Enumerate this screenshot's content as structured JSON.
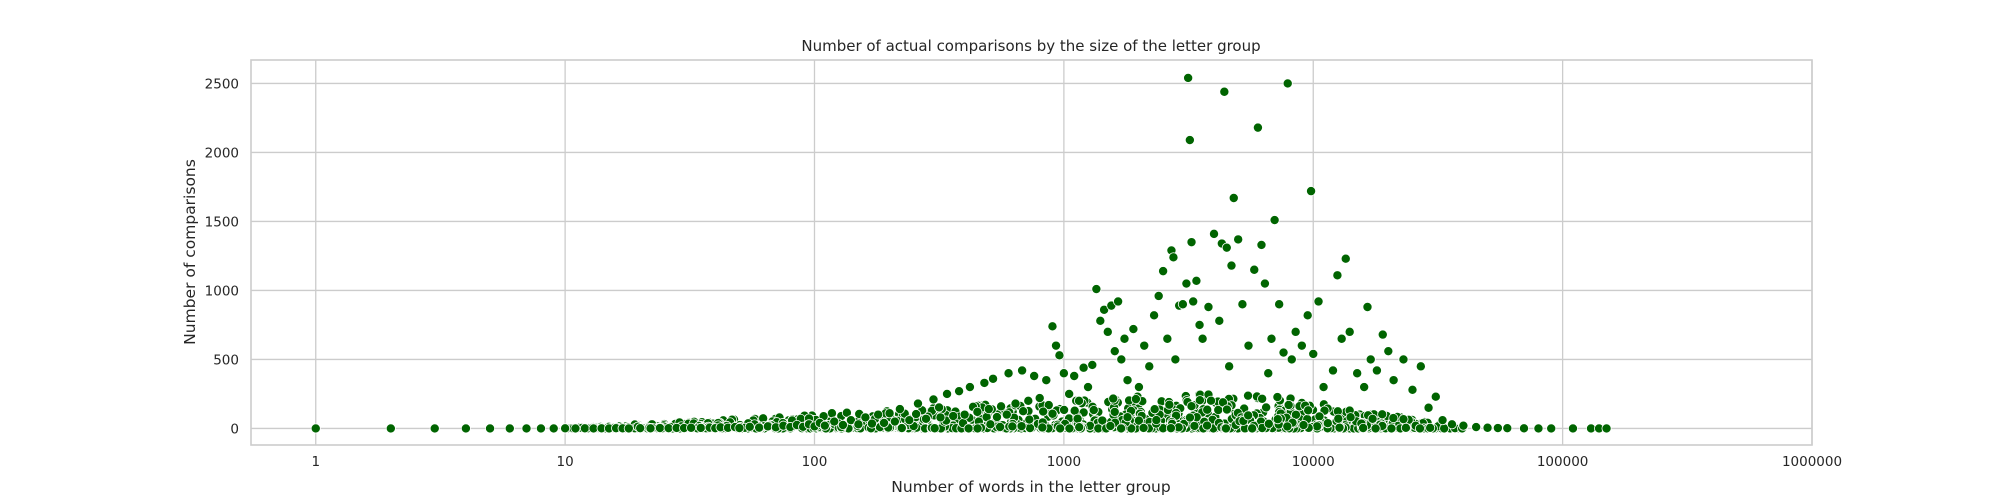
{
  "chart_data": {
    "type": "scatter",
    "title": "Number of actual comparisons by the size of the letter group",
    "xlabel": "Number of words in the letter group",
    "ylabel": "Number of comparisons",
    "x_scale": "log",
    "xlim": [
      0.55,
      1000000
    ],
    "ylim": [
      -120,
      2670
    ],
    "x_ticks": [
      1,
      10,
      100,
      1000,
      10000,
      100000,
      1000000
    ],
    "x_tick_labels": [
      "1",
      "10",
      "100",
      "1000",
      "10000",
      "100000",
      "1000000"
    ],
    "y_ticks": [
      0,
      500,
      1000,
      1500,
      2000,
      2500
    ],
    "y_tick_labels": [
      "0",
      "500",
      "1000",
      "1500",
      "2000",
      "2500"
    ],
    "grid": true,
    "legend": "none",
    "point_color": "#006400",
    "series": [
      {
        "values": [
          [
            1,
            0
          ],
          [
            2,
            0
          ],
          [
            3,
            0
          ],
          [
            4,
            0
          ],
          [
            5,
            0
          ],
          [
            6,
            0
          ],
          [
            7,
            0
          ],
          [
            8,
            0
          ],
          [
            9,
            0
          ],
          [
            10,
            1
          ],
          [
            11,
            0
          ],
          [
            12,
            1
          ],
          [
            13,
            0
          ],
          [
            14,
            1
          ],
          [
            15,
            0
          ],
          [
            16,
            2
          ],
          [
            17,
            1
          ],
          [
            18,
            0
          ],
          [
            20,
            2
          ],
          [
            22,
            1
          ],
          [
            24,
            3
          ],
          [
            26,
            2
          ],
          [
            28,
            4
          ],
          [
            30,
            3
          ],
          [
            32,
            5
          ],
          [
            35,
            4
          ],
          [
            38,
            6
          ],
          [
            40,
            2
          ],
          [
            42,
            8
          ],
          [
            45,
            5
          ],
          [
            48,
            10
          ],
          [
            50,
            3
          ],
          [
            55,
            12
          ],
          [
            60,
            6
          ],
          [
            65,
            15
          ],
          [
            70,
            8
          ],
          [
            75,
            20
          ],
          [
            80,
            10
          ],
          [
            85,
            25
          ],
          [
            90,
            12
          ],
          [
            95,
            30
          ],
          [
            100,
            15
          ],
          [
            105,
            40
          ],
          [
            110,
            20
          ],
          [
            120,
            50
          ],
          [
            130,
            25
          ],
          [
            140,
            60
          ],
          [
            150,
            30
          ],
          [
            160,
            80
          ],
          [
            170,
            35
          ],
          [
            180,
            100
          ],
          [
            190,
            40
          ],
          [
            200,
            110
          ],
          [
            210,
            50
          ],
          [
            220,
            140
          ],
          [
            240,
            60
          ],
          [
            260,
            180
          ],
          [
            280,
            70
          ],
          [
            300,
            210
          ],
          [
            320,
            80
          ],
          [
            340,
            250
          ],
          [
            360,
            90
          ],
          [
            380,
            270
          ],
          [
            400,
            100
          ],
          [
            420,
            300
          ],
          [
            450,
            120
          ],
          [
            480,
            330
          ],
          [
            500,
            140
          ],
          [
            520,
            360
          ],
          [
            560,
            160
          ],
          [
            600,
            400
          ],
          [
            640,
            180
          ],
          [
            680,
            420
          ],
          [
            720,
            200
          ],
          [
            760,
            380
          ],
          [
            800,
            220
          ],
          [
            850,
            350
          ],
          [
            900,
            740
          ],
          [
            930,
            600
          ],
          [
            960,
            530
          ],
          [
            1000,
            400
          ],
          [
            1050,
            250
          ],
          [
            1100,
            380
          ],
          [
            1150,
            200
          ],
          [
            1200,
            440
          ],
          [
            1250,
            300
          ],
          [
            1300,
            460
          ],
          [
            1350,
            1010
          ],
          [
            1400,
            780
          ],
          [
            1450,
            860
          ],
          [
            1500,
            700
          ],
          [
            1550,
            890
          ],
          [
            1600,
            560
          ],
          [
            1650,
            920
          ],
          [
            1700,
            500
          ],
          [
            1750,
            650
          ],
          [
            1800,
            350
          ],
          [
            1900,
            720
          ],
          [
            2000,
            300
          ],
          [
            2100,
            600
          ],
          [
            2200,
            450
          ],
          [
            2300,
            820
          ],
          [
            2400,
            960
          ],
          [
            2500,
            1140
          ],
          [
            2600,
            650
          ],
          [
            2700,
            1290
          ],
          [
            2750,
            1240
          ],
          [
            2800,
            500
          ],
          [
            2900,
            890
          ],
          [
            3000,
            900
          ],
          [
            3100,
            1050
          ],
          [
            3150,
            2540
          ],
          [
            3200,
            2090
          ],
          [
            3250,
            1350
          ],
          [
            3300,
            920
          ],
          [
            3400,
            1070
          ],
          [
            3500,
            750
          ],
          [
            3600,
            650
          ],
          [
            3800,
            880
          ],
          [
            4000,
            1410
          ],
          [
            4200,
            780
          ],
          [
            4300,
            1340
          ],
          [
            4400,
            2440
          ],
          [
            4500,
            1310
          ],
          [
            4600,
            450
          ],
          [
            4700,
            1180
          ],
          [
            4800,
            1670
          ],
          [
            5000,
            1370
          ],
          [
            5200,
            900
          ],
          [
            5500,
            600
          ],
          [
            5800,
            1150
          ],
          [
            6000,
            2180
          ],
          [
            6200,
            1330
          ],
          [
            6400,
            1050
          ],
          [
            6600,
            400
          ],
          [
            6800,
            650
          ],
          [
            7000,
            1510
          ],
          [
            7300,
            900
          ],
          [
            7600,
            550
          ],
          [
            7900,
            2500
          ],
          [
            8200,
            500
          ],
          [
            8500,
            700
          ],
          [
            9000,
            600
          ],
          [
            9500,
            820
          ],
          [
            9800,
            1720
          ],
          [
            10000,
            540
          ],
          [
            10500,
            920
          ],
          [
            11000,
            300
          ],
          [
            12000,
            420
          ],
          [
            12500,
            1110
          ],
          [
            13000,
            650
          ],
          [
            13500,
            1230
          ],
          [
            14000,
            700
          ],
          [
            15000,
            400
          ],
          [
            16000,
            300
          ],
          [
            16500,
            880
          ],
          [
            17000,
            500
          ],
          [
            18000,
            420
          ],
          [
            19000,
            680
          ],
          [
            20000,
            560
          ],
          [
            21000,
            350
          ],
          [
            23000,
            500
          ],
          [
            25000,
            280
          ],
          [
            27000,
            450
          ],
          [
            29000,
            150
          ],
          [
            31000,
            230
          ],
          [
            33000,
            60
          ],
          [
            36000,
            30
          ],
          [
            40000,
            20
          ],
          [
            45000,
            10
          ],
          [
            50000,
            5
          ],
          [
            55000,
            3
          ],
          [
            60000,
            2
          ],
          [
            70000,
            1
          ],
          [
            80000,
            0
          ],
          [
            90000,
            0
          ],
          [
            110000,
            0
          ],
          [
            130000,
            0
          ],
          [
            140000,
            0
          ],
          [
            150000,
            0
          ]
        ]
      }
    ]
  }
}
